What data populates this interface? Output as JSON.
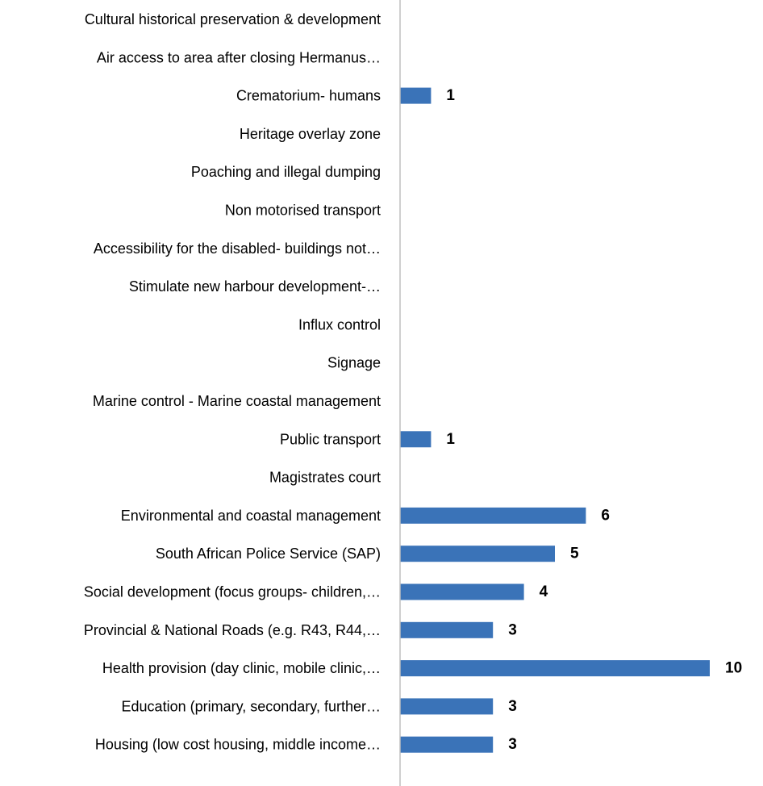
{
  "chart_data": {
    "type": "bar",
    "orientation": "horizontal",
    "categories": [
      "Cultural historical preservation & development",
      "Air access to area after closing Hermanus…",
      "Crematorium- humans",
      "Heritage overlay zone",
      "Poaching and illegal dumping",
      "Non motorised transport",
      "Accessibility for the disabled- buildings not…",
      "Stimulate new harbour development-…",
      "Influx control",
      "Signage",
      "Marine control - Marine coastal management",
      "Public transport",
      "Magistrates court",
      "Environmental and coastal management",
      "South African Police Service (SAP)",
      "Social development (focus groups- children,…",
      "Provincial  & National Roads (e.g. R43, R44,…",
      "Health provision (day clinic, mobile clinic,…",
      "Education (primary, secondary, further…",
      "Housing (low cost housing, middle income…"
    ],
    "values": [
      0,
      0,
      1,
      0,
      0,
      0,
      0,
      0,
      0,
      0,
      0,
      1,
      0,
      6,
      5,
      4,
      3,
      10,
      3,
      3
    ],
    "data_labels": [
      null,
      null,
      "1",
      null,
      null,
      null,
      null,
      null,
      null,
      null,
      null,
      "1",
      null,
      "6",
      "5",
      "4",
      "3",
      "10",
      "3",
      "3"
    ],
    "bar_color": "#3a73b8",
    "xlim": [
      0,
      10
    ],
    "grid": false,
    "legend": "none",
    "title": "",
    "xlabel": "",
    "ylabel": ""
  }
}
